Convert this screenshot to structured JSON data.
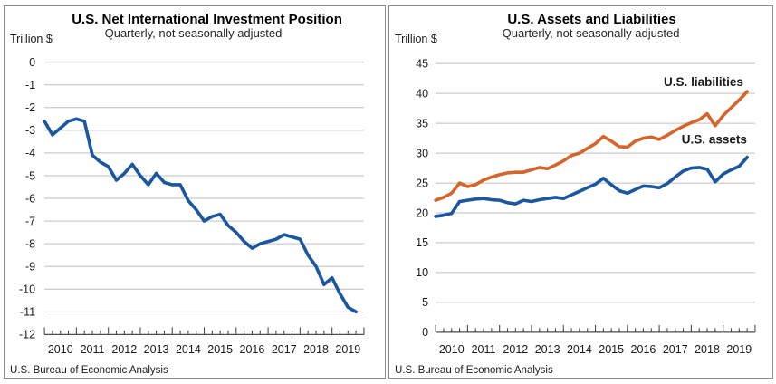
{
  "page": {
    "background": "#ffffff",
    "panel_border_color": "#8c8c8c"
  },
  "chart_data": [
    {
      "type": "line",
      "title": "U.S. Net International Investment Position",
      "subtitle": "Quarterly, not seasonally adjusted",
      "ylabel": "Trillion $",
      "source": "U.S. Bureau of Economic Analysis",
      "grid": true,
      "grid_color": "#bfbfbf",
      "axis_color": "#4d4d4d",
      "ylim": [
        -12,
        0
      ],
      "yticks": [
        0,
        -1,
        -2,
        -3,
        -4,
        -5,
        -6,
        -7,
        -8,
        -9,
        -10,
        -11,
        -12
      ],
      "axis_at": -12,
      "x_years": [
        "2010",
        "2011",
        "2012",
        "2013",
        "2014",
        "2015",
        "2016",
        "2017",
        "2018",
        "2019"
      ],
      "quarters": [
        "2010Q1",
        "2010Q2",
        "2010Q3",
        "2010Q4",
        "2011Q1",
        "2011Q2",
        "2011Q3",
        "2011Q4",
        "2012Q1",
        "2012Q2",
        "2012Q3",
        "2012Q4",
        "2013Q1",
        "2013Q2",
        "2013Q3",
        "2013Q4",
        "2014Q1",
        "2014Q2",
        "2014Q3",
        "2014Q4",
        "2015Q1",
        "2015Q2",
        "2015Q3",
        "2015Q4",
        "2016Q1",
        "2016Q2",
        "2016Q3",
        "2016Q4",
        "2017Q1",
        "2017Q2",
        "2017Q3",
        "2017Q4",
        "2018Q1",
        "2018Q2",
        "2018Q3",
        "2018Q4",
        "2019Q1",
        "2019Q2",
        "2019Q3",
        "2019Q4"
      ],
      "series": [
        {
          "id": "niip",
          "color": "#1b579e",
          "values": [
            -2.6,
            -3.2,
            -2.9,
            -2.6,
            -2.5,
            -2.6,
            -4.1,
            -4.4,
            -4.6,
            -5.2,
            -4.9,
            -4.5,
            -5.0,
            -5.4,
            -4.9,
            -5.3,
            -5.4,
            -5.4,
            -6.1,
            -6.5,
            -7.0,
            -6.8,
            -6.7,
            -7.2,
            -7.5,
            -7.9,
            -8.2,
            -8.0,
            -7.9,
            -7.8,
            -7.6,
            -7.7,
            -7.8,
            -8.5,
            -9.0,
            -9.8,
            -9.5,
            -10.2,
            -10.8,
            -11.0
          ]
        }
      ]
    },
    {
      "type": "line",
      "title": "U.S. Assets and Liabilities",
      "subtitle": "Quarterly, not seasonally adjusted",
      "ylabel": "Trillion $",
      "source": "U.S. Bureau of Economic Analysis",
      "grid": true,
      "grid_color": "#bfbfbf",
      "axis_color": "#4d4d4d",
      "ylim": [
        0,
        45
      ],
      "yticks": [
        45,
        40,
        35,
        30,
        25,
        20,
        15,
        10,
        5,
        0
      ],
      "axis_at": 0,
      "legend": "inline labels near line ends",
      "x_years": [
        "2010",
        "2011",
        "2012",
        "2013",
        "2014",
        "2015",
        "2016",
        "2017",
        "2018",
        "2019"
      ],
      "quarters": [
        "2010Q1",
        "2010Q2",
        "2010Q3",
        "2010Q4",
        "2011Q1",
        "2011Q2",
        "2011Q3",
        "2011Q4",
        "2012Q1",
        "2012Q2",
        "2012Q3",
        "2012Q4",
        "2013Q1",
        "2013Q2",
        "2013Q3",
        "2013Q4",
        "2014Q1",
        "2014Q2",
        "2014Q3",
        "2014Q4",
        "2015Q1",
        "2015Q2",
        "2015Q3",
        "2015Q4",
        "2016Q1",
        "2016Q2",
        "2016Q3",
        "2016Q4",
        "2017Q1",
        "2017Q2",
        "2017Q3",
        "2017Q4",
        "2018Q1",
        "2018Q2",
        "2018Q3",
        "2018Q4",
        "2019Q1",
        "2019Q2",
        "2019Q3",
        "2019Q4"
      ],
      "series": [
        {
          "id": "liabilities",
          "name": "U.S. liabilities",
          "color": "#d4652b",
          "values": [
            22.1,
            22.6,
            23.3,
            25.0,
            24.4,
            24.7,
            25.5,
            26.0,
            26.4,
            26.7,
            26.8,
            26.8,
            27.2,
            27.6,
            27.4,
            28.0,
            28.7,
            29.6,
            30.0,
            30.8,
            31.6,
            32.8,
            32.0,
            31.1,
            31.0,
            32.0,
            32.5,
            32.7,
            32.3,
            33.0,
            33.8,
            34.5,
            35.1,
            35.6,
            36.6,
            34.6,
            36.3,
            37.6,
            38.9,
            40.3
          ]
        },
        {
          "id": "assets",
          "name": "U.S. assets",
          "color": "#1b579e",
          "values": [
            19.4,
            19.6,
            19.9,
            21.9,
            22.1,
            22.3,
            22.4,
            22.2,
            22.1,
            21.7,
            21.5,
            22.1,
            21.9,
            22.2,
            22.4,
            22.6,
            22.4,
            23.0,
            23.6,
            24.2,
            24.8,
            25.8,
            24.7,
            23.7,
            23.3,
            23.9,
            24.5,
            24.4,
            24.2,
            24.9,
            26.0,
            27.0,
            27.5,
            27.6,
            27.3,
            25.2,
            26.5,
            27.2,
            27.8,
            29.3
          ]
        }
      ]
    }
  ]
}
